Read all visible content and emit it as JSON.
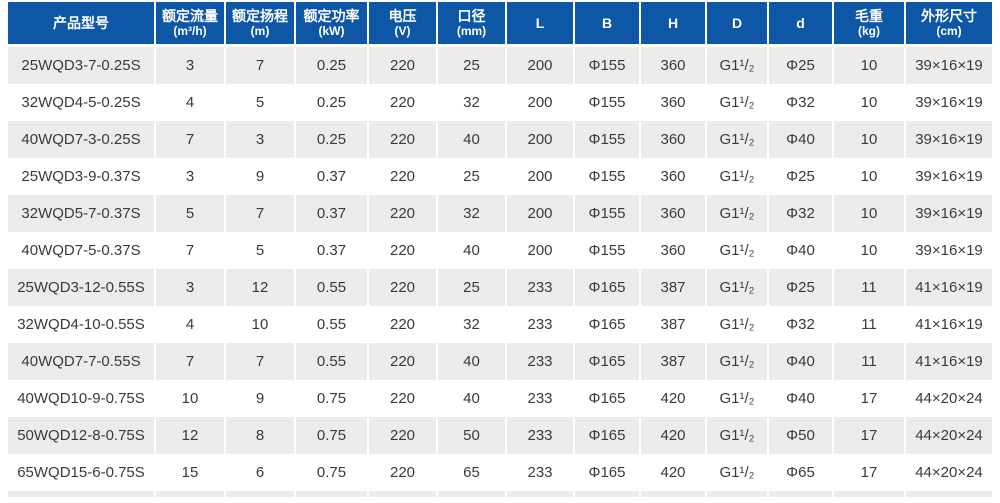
{
  "colors": {
    "header_bg": "#0d57a6",
    "header_text": "#ffffff",
    "row_alt_bg": "#ececec",
    "row_bg": "#ffffff",
    "body_text": "#3a3a3a"
  },
  "table": {
    "columns": [
      {
        "label": "产品型号",
        "sub": ""
      },
      {
        "label": "额定流量",
        "sub": "(m³/h)"
      },
      {
        "label": "额定扬程",
        "sub": "(m)"
      },
      {
        "label": "额定功率",
        "sub": "(kW)"
      },
      {
        "label": "电压",
        "sub": "(V)"
      },
      {
        "label": "口径",
        "sub": "(mm)"
      },
      {
        "label": "L",
        "sub": ""
      },
      {
        "label": "B",
        "sub": ""
      },
      {
        "label": "H",
        "sub": ""
      },
      {
        "label": "D",
        "sub": ""
      },
      {
        "label": "d",
        "sub": ""
      },
      {
        "label": "毛重",
        "sub": "(kg)"
      },
      {
        "label": "外形尺寸",
        "sub": "(cm)"
      }
    ],
    "rows": [
      [
        "25WQD3-7-0.25S",
        "3",
        "7",
        "0.25",
        "220",
        "25",
        "200",
        "Φ155",
        "360",
        "G1¹/₂",
        "Φ25",
        "10",
        "39×16×19"
      ],
      [
        "32WQD4-5-0.25S",
        "4",
        "5",
        "0.25",
        "220",
        "32",
        "200",
        "Φ155",
        "360",
        "G1¹/₂",
        "Φ32",
        "10",
        "39×16×19"
      ],
      [
        "40WQD7-3-0.25S",
        "7",
        "3",
        "0.25",
        "220",
        "40",
        "200",
        "Φ155",
        "360",
        "G1¹/₂",
        "Φ40",
        "10",
        "39×16×19"
      ],
      [
        "25WQD3-9-0.37S",
        "3",
        "9",
        "0.37",
        "220",
        "25",
        "200",
        "Φ155",
        "360",
        "G1¹/₂",
        "Φ25",
        "10",
        "39×16×19"
      ],
      [
        "32WQD5-7-0.37S",
        "5",
        "7",
        "0.37",
        "220",
        "32",
        "200",
        "Φ155",
        "360",
        "G1¹/₂",
        "Φ32",
        "10",
        "39×16×19"
      ],
      [
        "40WQD7-5-0.37S",
        "7",
        "5",
        "0.37",
        "220",
        "40",
        "200",
        "Φ155",
        "360",
        "G1¹/₂",
        "Φ40",
        "10",
        "39×16×19"
      ],
      [
        "25WQD3-12-0.55S",
        "3",
        "12",
        "0.55",
        "220",
        "25",
        "233",
        "Φ165",
        "387",
        "G1¹/₂",
        "Φ25",
        "11",
        "41×16×19"
      ],
      [
        "32WQD4-10-0.55S",
        "4",
        "10",
        "0.55",
        "220",
        "32",
        "233",
        "Φ165",
        "387",
        "G1¹/₂",
        "Φ32",
        "11",
        "41×16×19"
      ],
      [
        "40WQD7-7-0.55S",
        "7",
        "7",
        "0.55",
        "220",
        "40",
        "233",
        "Φ165",
        "387",
        "G1¹/₂",
        "Φ40",
        "11",
        "41×16×19"
      ],
      [
        "40WQD10-9-0.75S",
        "10",
        "9",
        "0.75",
        "220",
        "40",
        "233",
        "Φ165",
        "420",
        "G1¹/₂",
        "Φ40",
        "17",
        "44×20×24"
      ],
      [
        "50WQD12-8-0.75S",
        "12",
        "8",
        "0.75",
        "220",
        "50",
        "233",
        "Φ165",
        "420",
        "G1¹/₂",
        "Φ50",
        "17",
        "44×20×24"
      ],
      [
        "65WQD15-6-0.75S",
        "15",
        "6",
        "0.75",
        "220",
        "65",
        "233",
        "Φ165",
        "420",
        "G1¹/₂",
        "Φ65",
        "17",
        "44×20×24"
      ]
    ]
  }
}
